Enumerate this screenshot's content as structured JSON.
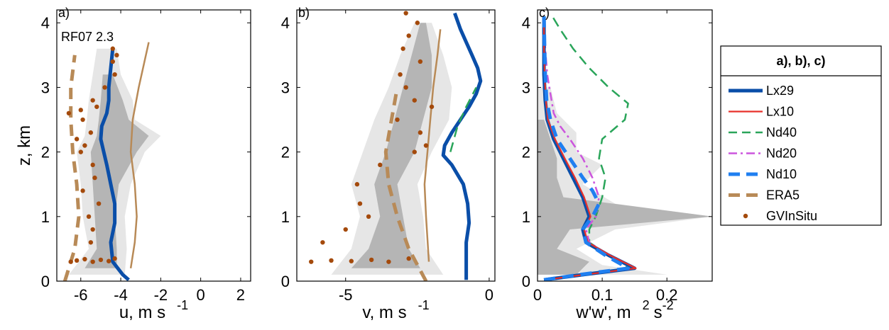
{
  "chart_data": [
    {
      "type": "line",
      "panel_label": "a)",
      "annotation": "RF07 2.3",
      "xlabel": "u, m s",
      "xlabel_sup": "-1",
      "ylabel": "z, km",
      "xlim": [
        -7.2,
        2.5
      ],
      "ylim": [
        0,
        4.2
      ],
      "xticks": [
        -6,
        -4,
        -2,
        0,
        2
      ],
      "xtick_labels": [
        "-6",
        "-4",
        "-2",
        "0",
        "2"
      ],
      "yticks": [
        0,
        1,
        2,
        3,
        4
      ],
      "ytick_labels": [
        "0",
        "1",
        "2",
        "3",
        "4"
      ],
      "band_outer": {
        "z": [
          0.1,
          0.5,
          1.0,
          1.5,
          2.0,
          2.25,
          2.5,
          2.8,
          3.2,
          3.6
        ],
        "lo": [
          -6.6,
          -5.6,
          -5.9,
          -6.0,
          -6.2,
          -5.8,
          -5.7,
          -5.6,
          -5.4,
          -5.2
        ],
        "hi": [
          -3.8,
          -3.7,
          -3.8,
          -3.5,
          -2.8,
          -2.0,
          -3.3,
          -3.4,
          -4.0,
          -4.2
        ]
      },
      "band_inner": {
        "z": [
          0.2,
          0.5,
          1.0,
          1.5,
          2.0,
          2.25,
          2.5,
          2.8,
          3.2
        ],
        "lo": [
          -5.8,
          -5.2,
          -5.3,
          -5.4,
          -5.5,
          -5.2,
          -5.1,
          -5.0,
          -4.9
        ],
        "hi": [
          -4.2,
          -4.2,
          -4.3,
          -4.1,
          -3.2,
          -2.6,
          -3.6,
          -3.9,
          -4.4
        ]
      },
      "series": [
        {
          "name": "ERA5",
          "z": [
            0.0,
            0.5,
            1.0,
            1.5,
            2.0,
            2.5,
            3.0,
            3.5
          ],
          "x": [
            -6.8,
            -6.3,
            -6.1,
            -6.2,
            -6.4,
            -6.5,
            -6.5,
            -6.3
          ]
        },
        {
          "name": "ERA5 (solid)",
          "z": [
            0.2,
            0.6,
            1.0,
            1.5,
            2.0,
            2.5,
            3.0,
            3.7
          ],
          "x": [
            -3.5,
            -3.3,
            -3.2,
            -3.3,
            -3.5,
            -3.4,
            -3.1,
            -2.6
          ]
        },
        {
          "name": "Lx29",
          "z": [
            0.02,
            0.1,
            0.3,
            0.6,
            0.9,
            1.2,
            1.5,
            1.8,
            2.0,
            2.2,
            2.4,
            2.6,
            2.8,
            3.0,
            3.3,
            3.6
          ],
          "x": [
            -3.6,
            -3.9,
            -4.4,
            -4.5,
            -4.3,
            -4.3,
            -4.5,
            -4.7,
            -4.85,
            -5.0,
            -4.95,
            -4.7,
            -4.6,
            -4.6,
            -4.5,
            -4.4
          ]
        },
        {
          "name": "GVInSitu",
          "z": [
            0.3,
            0.32,
            0.34,
            0.3,
            0.33,
            0.31,
            0.35,
            0.6,
            0.8,
            1.0,
            1.2,
            1.4,
            1.6,
            1.8,
            2.0,
            2.1,
            2.2,
            2.3,
            2.5,
            2.6,
            2.65,
            2.7,
            2.8,
            3.0,
            3.2,
            3.4,
            3.5,
            3.6
          ],
          "x": [
            -6.5,
            -6.2,
            -5.8,
            -5.4,
            -5.0,
            -4.6,
            -4.3,
            -5.5,
            -5.4,
            -5.6,
            -5.1,
            -5.9,
            -5.3,
            -5.4,
            -6.0,
            -5.8,
            -6.2,
            -5.5,
            -5.9,
            -6.6,
            -6.0,
            -5.2,
            -5.4,
            -4.8,
            -4.3,
            -4.4,
            -4.2,
            -4.4
          ]
        }
      ]
    },
    {
      "type": "line",
      "panel_label": "b)",
      "xlabel": "v, m s",
      "xlabel_sup": "-1",
      "xlim": [
        -6.7,
        0.2
      ],
      "ylim": [
        0,
        4.2
      ],
      "xticks": [
        -5,
        0
      ],
      "xtick_labels": [
        "-5",
        "0"
      ],
      "yticks": [
        0,
        1,
        2,
        3,
        4
      ],
      "ytick_labels": [
        "0",
        "1",
        "2",
        "3",
        "4"
      ],
      "band_outer": {
        "z": [
          0.1,
          0.5,
          1.0,
          1.5,
          2.0,
          2.5,
          3.0,
          3.5,
          4.0
        ],
        "lo": [
          -5.5,
          -4.8,
          -4.5,
          -4.8,
          -4.4,
          -4.0,
          -3.5,
          -3.1,
          -2.6
        ],
        "hi": [
          -1.6,
          -2.2,
          -2.3,
          -2.5,
          -2.0,
          -1.4,
          -1.3,
          -1.6,
          -2.0
        ]
      },
      "band_inner": {
        "z": [
          0.2,
          0.5,
          1.0,
          1.5,
          2.0,
          2.5,
          3.0,
          3.5,
          4.0
        ],
        "lo": [
          -4.8,
          -4.2,
          -3.8,
          -4.0,
          -3.6,
          -3.3,
          -3.0,
          -2.7,
          -2.4
        ],
        "hi": [
          -2.4,
          -2.8,
          -3.0,
          -3.2,
          -2.6,
          -2.3,
          -2.0,
          -2.0,
          -2.2
        ]
      },
      "series": [
        {
          "name": "ERA5",
          "z": [
            0.0,
            0.5,
            1.0,
            1.5,
            2.0,
            2.5,
            3.0
          ],
          "x": [
            -2.2,
            -2.8,
            -3.2,
            -3.5,
            -3.6,
            -3.4,
            -3.2
          ]
        },
        {
          "name": "ERA5 (solid)",
          "z": [
            0.3,
            1.0,
            1.5,
            2.0,
            2.5,
            3.0,
            3.5,
            3.9
          ],
          "x": [
            -2.1,
            -2.2,
            -2.25,
            -2.15,
            -2.05,
            -1.95,
            -1.8,
            -1.7
          ]
        },
        {
          "name": "Lx29",
          "z": [
            0.02,
            0.3,
            0.6,
            0.9,
            1.2,
            1.5,
            1.8,
            1.95,
            2.1,
            2.3,
            2.5,
            2.7,
            2.9,
            3.1,
            3.3,
            3.5,
            3.7,
            3.9,
            4.15
          ],
          "x": [
            -0.8,
            -0.8,
            -0.8,
            -0.7,
            -0.75,
            -0.9,
            -1.3,
            -1.6,
            -1.55,
            -1.3,
            -1.0,
            -0.7,
            -0.45,
            -0.3,
            -0.4,
            -0.6,
            -0.8,
            -1.0,
            -1.2
          ]
        },
        {
          "name": "Nd40",
          "z": [
            2.0,
            2.4,
            2.7,
            3.0
          ],
          "x": [
            -1.35,
            -1.1,
            -0.8,
            -0.45
          ]
        },
        {
          "name": "GVInSitu",
          "z": [
            0.3,
            0.32,
            0.31,
            0.33,
            0.3,
            0.35,
            0.6,
            0.8,
            1.0,
            1.2,
            1.5,
            1.8,
            2.0,
            2.1,
            2.3,
            2.5,
            2.7,
            2.8,
            3.0,
            3.2,
            3.4,
            3.6,
            3.8,
            4.0,
            4.15
          ],
          "x": [
            -6.2,
            -5.5,
            -4.8,
            -4.1,
            -3.5,
            -2.8,
            -5.8,
            -5.0,
            -4.2,
            -4.5,
            -4.6,
            -3.8,
            -2.6,
            -2.2,
            -2.4,
            -3.2,
            -2.0,
            -2.6,
            -2.9,
            -3.1,
            -2.4,
            -3.0,
            -2.8,
            -2.5,
            -2.9
          ]
        }
      ]
    },
    {
      "type": "line",
      "panel_label": "c)",
      "xlabel": "w'w', m",
      "xlabel_sup1": "2",
      "xlabel_mid": "s",
      "xlabel_sup2": "-2",
      "xlim": [
        0,
        0.27
      ],
      "ylim": [
        0,
        4.2
      ],
      "xticks": [
        0,
        0.1,
        0.2
      ],
      "xtick_labels": [
        "0",
        "0.1",
        "0.2"
      ],
      "yticks": [
        0,
        1,
        2,
        3,
        4
      ],
      "ytick_labels": [
        "0",
        "1",
        "2",
        "3",
        "4"
      ],
      "band_outer": {
        "z": [
          0.1,
          0.25,
          0.5,
          0.8,
          1.0,
          1.2,
          1.5,
          1.8,
          2.0,
          2.3,
          2.6,
          3.0
        ],
        "lo": [
          0.0,
          0.0,
          0.0,
          0.0,
          0.0,
          0.0,
          0.0,
          0.0,
          0.0,
          0.0,
          0.0,
          0.0
        ],
        "hi": [
          0.2,
          0.1,
          0.06,
          0.12,
          0.27,
          0.12,
          0.07,
          0.1,
          0.06,
          0.06,
          0.03,
          0.02
        ]
      },
      "band_inner": {
        "z": [
          0.1,
          0.3,
          0.5,
          0.8,
          1.0,
          1.3,
          1.6,
          1.9,
          2.2,
          2.5
        ],
        "lo": [
          0.0,
          0.0,
          0.0,
          0.0,
          0.0,
          0.0,
          0.0,
          0.0,
          0.0,
          0.0
        ],
        "hi": [
          0.06,
          0.08,
          0.03,
          0.05,
          0.27,
          0.04,
          0.03,
          0.03,
          0.02,
          0.01
        ]
      },
      "series": [
        {
          "name": "Nd40",
          "z": [
            0.02,
            0.1,
            0.2,
            0.4,
            0.6,
            0.8,
            1.0,
            1.3,
            1.6,
            1.9,
            2.2,
            2.5,
            2.75,
            3.0,
            3.3,
            3.6,
            3.9,
            4.15
          ],
          "x": [
            0.01,
            0.08,
            0.14,
            0.11,
            0.08,
            0.08,
            0.09,
            0.1,
            0.105,
            0.095,
            0.1,
            0.135,
            0.14,
            0.11,
            0.08,
            0.055,
            0.035,
            0.02
          ]
        },
        {
          "name": "Nd20",
          "z": [
            0.02,
            0.1,
            0.2,
            0.4,
            0.6,
            0.8,
            1.0,
            1.3,
            1.6,
            1.9,
            2.2,
            2.4,
            2.6,
            2.9,
            3.2,
            3.6,
            4.1
          ],
          "x": [
            0.01,
            0.07,
            0.15,
            0.11,
            0.08,
            0.075,
            0.09,
            0.095,
            0.085,
            0.07,
            0.05,
            0.035,
            0.025,
            0.02,
            0.015,
            0.012,
            0.01
          ]
        },
        {
          "name": "Lx29",
          "z": [
            0.02,
            0.1,
            0.2,
            0.4,
            0.6,
            0.8,
            1.0,
            1.3,
            1.6,
            1.9,
            2.2,
            2.5,
            2.8,
            3.2,
            3.6,
            4.1
          ],
          "x": [
            0.01,
            0.07,
            0.15,
            0.11,
            0.075,
            0.07,
            0.08,
            0.07,
            0.055,
            0.04,
            0.025,
            0.015,
            0.012,
            0.01,
            0.01,
            0.01
          ]
        },
        {
          "name": "Lx10",
          "z": [
            0.02,
            0.1,
            0.2,
            0.4,
            0.6,
            0.8,
            1.0,
            1.3,
            1.6,
            1.9,
            2.2,
            2.5,
            2.8,
            3.2,
            3.6,
            4.1
          ],
          "x": [
            0.012,
            0.072,
            0.152,
            0.112,
            0.078,
            0.072,
            0.082,
            0.072,
            0.058,
            0.042,
            0.027,
            0.016,
            0.013,
            0.011,
            0.01,
            0.01
          ]
        },
        {
          "name": "Nd10",
          "z": [
            0.02,
            0.1,
            0.2,
            0.4,
            0.6,
            0.8,
            1.0,
            1.2,
            1.4,
            1.6,
            1.9,
            2.2,
            2.5,
            2.8,
            3.2,
            3.6,
            4.1
          ],
          "x": [
            0.01,
            0.065,
            0.14,
            0.105,
            0.075,
            0.07,
            0.085,
            0.095,
            0.085,
            0.07,
            0.05,
            0.03,
            0.02,
            0.014,
            0.012,
            0.011,
            0.01
          ]
        }
      ]
    }
  ],
  "legend": {
    "title": "a), b), c)",
    "entries": [
      {
        "label": "Lx29",
        "style": "solid-thick",
        "color": "#0a4ea8"
      },
      {
        "label": "Lx10",
        "style": "solid",
        "color": "#e8302a"
      },
      {
        "label": "Nd40",
        "style": "dashed",
        "color": "#2aa55a"
      },
      {
        "label": "Nd20",
        "style": "dashdot",
        "color": "#cc55dd"
      },
      {
        "label": "Nd10",
        "style": "dashed-thick",
        "color": "#1f7ff0"
      },
      {
        "label": "ERA5",
        "style": "dashed-thick",
        "color": "#b88a57"
      },
      {
        "label": "GVInSitu",
        "style": "dot",
        "color": "#a44a0c"
      }
    ]
  },
  "colors": {
    "band_outer": "#e6e6e6",
    "band_inner": "#b5b5b5",
    "insitu": "#a44a0c",
    "era5": "#b88a57"
  }
}
